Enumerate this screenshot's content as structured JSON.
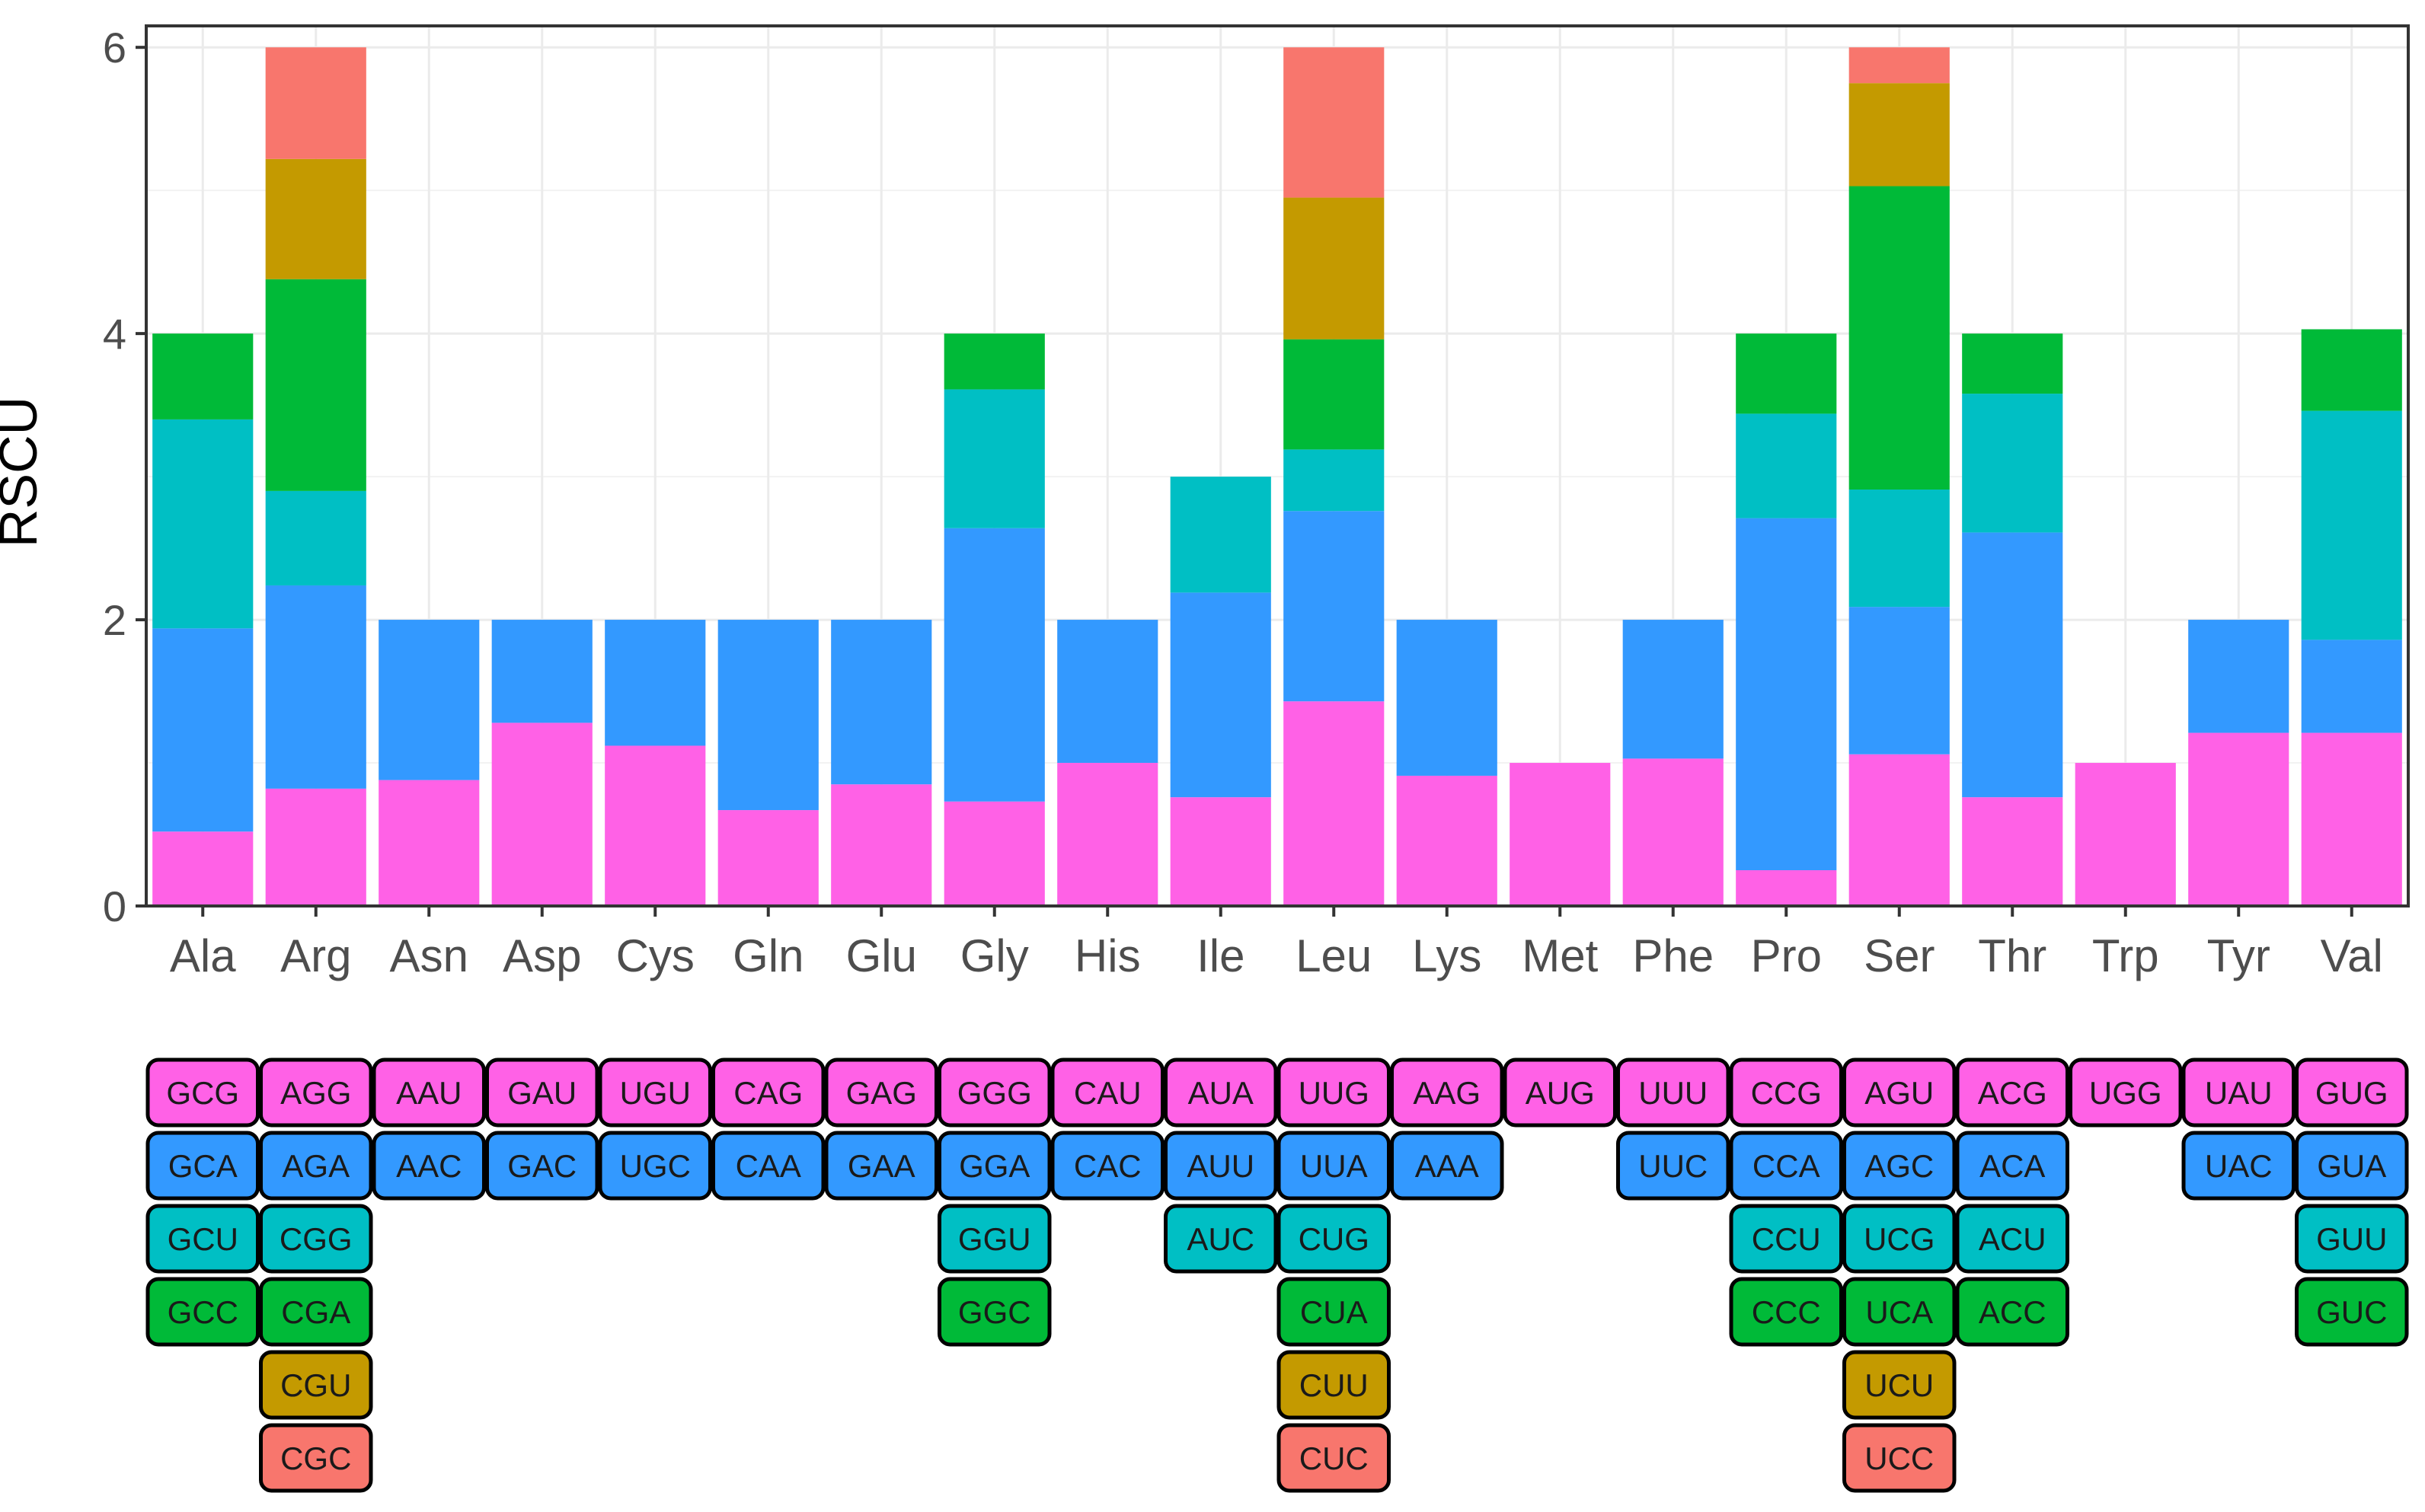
{
  "chart_data": {
    "type": "bar",
    "stacked": true,
    "title": "",
    "xlabel": "",
    "ylabel": "RSCU",
    "ylim": [
      0,
      6.15
    ],
    "yticks": [
      0,
      2,
      4,
      6
    ],
    "grid": true,
    "categories": [
      "Ala",
      "Arg",
      "Asn",
      "Asp",
      "Cys",
      "Gln",
      "Glu",
      "Gly",
      "His",
      "Ile",
      "Leu",
      "Lys",
      "Met",
      "Phe",
      "Pro",
      "Ser",
      "Thr",
      "Trp",
      "Tyr",
      "Val"
    ],
    "level_colors": [
      "#FF61E6",
      "#3399FF",
      "#00BFC4",
      "#00BA38",
      "#C49A00",
      "#F8766D"
    ],
    "stacks": [
      [
        {
          "codon": "GCG",
          "value": 0.52
        },
        {
          "codon": "GCA",
          "value": 1.42
        },
        {
          "codon": "GCU",
          "value": 1.46
        },
        {
          "codon": "GCC",
          "value": 0.6
        }
      ],
      [
        {
          "codon": "AGG",
          "value": 0.82
        },
        {
          "codon": "AGA",
          "value": 1.42
        },
        {
          "codon": "CGG",
          "value": 0.66
        },
        {
          "codon": "CGA",
          "value": 1.48
        },
        {
          "codon": "CGU",
          "value": 0.84
        },
        {
          "codon": "CGC",
          "value": 0.78
        }
      ],
      [
        {
          "codon": "AAU",
          "value": 0.88
        },
        {
          "codon": "AAC",
          "value": 1.12
        }
      ],
      [
        {
          "codon": "GAU",
          "value": 1.28
        },
        {
          "codon": "GAC",
          "value": 0.72
        }
      ],
      [
        {
          "codon": "UGU",
          "value": 1.12
        },
        {
          "codon": "UGC",
          "value": 0.88
        }
      ],
      [
        {
          "codon": "CAG",
          "value": 0.67
        },
        {
          "codon": "CAA",
          "value": 1.33
        }
      ],
      [
        {
          "codon": "GAG",
          "value": 0.85
        },
        {
          "codon": "GAA",
          "value": 1.15
        }
      ],
      [
        {
          "codon": "GGG",
          "value": 0.73
        },
        {
          "codon": "GGA",
          "value": 1.91
        },
        {
          "codon": "GGU",
          "value": 0.97
        },
        {
          "codon": "GGC",
          "value": 0.39
        }
      ],
      [
        {
          "codon": "CAU",
          "value": 1.0
        },
        {
          "codon": "CAC",
          "value": 1.0
        }
      ],
      [
        {
          "codon": "AUA",
          "value": 0.76
        },
        {
          "codon": "AUU",
          "value": 1.43
        },
        {
          "codon": "AUC",
          "value": 0.81
        }
      ],
      [
        {
          "codon": "UUG",
          "value": 1.43
        },
        {
          "codon": "UUA",
          "value": 1.33
        },
        {
          "codon": "CUG",
          "value": 0.43
        },
        {
          "codon": "CUA",
          "value": 0.77
        },
        {
          "codon": "CUU",
          "value": 0.99
        },
        {
          "codon": "CUC",
          "value": 1.05
        }
      ],
      [
        {
          "codon": "AAG",
          "value": 0.91
        },
        {
          "codon": "AAA",
          "value": 1.09
        }
      ],
      [
        {
          "codon": "AUG",
          "value": 1.0
        }
      ],
      [
        {
          "codon": "UUU",
          "value": 1.03
        },
        {
          "codon": "UUC",
          "value": 0.97
        }
      ],
      [
        {
          "codon": "CCG",
          "value": 0.25
        },
        {
          "codon": "CCA",
          "value": 2.46
        },
        {
          "codon": "CCU",
          "value": 0.73
        },
        {
          "codon": "CCC",
          "value": 0.56
        }
      ],
      [
        {
          "codon": "AGU",
          "value": 1.06
        },
        {
          "codon": "AGC",
          "value": 1.03
        },
        {
          "codon": "UCG",
          "value": 0.82
        },
        {
          "codon": "UCA",
          "value": 2.12
        },
        {
          "codon": "UCU",
          "value": 0.72
        },
        {
          "codon": "UCC",
          "value": 0.25
        }
      ],
      [
        {
          "codon": "ACG",
          "value": 0.76
        },
        {
          "codon": "ACA",
          "value": 1.85
        },
        {
          "codon": "ACU",
          "value": 0.97
        },
        {
          "codon": "ACC",
          "value": 0.42
        }
      ],
      [
        {
          "codon": "UGG",
          "value": 1.0
        }
      ],
      [
        {
          "codon": "UAU",
          "value": 1.21
        },
        {
          "codon": "UAC",
          "value": 0.79
        }
      ],
      [
        {
          "codon": "GUG",
          "value": 1.21
        },
        {
          "codon": "GUA",
          "value": 0.65
        },
        {
          "codon": "GUU",
          "value": 1.6
        },
        {
          "codon": "GUC",
          "value": 0.57
        }
      ]
    ]
  }
}
